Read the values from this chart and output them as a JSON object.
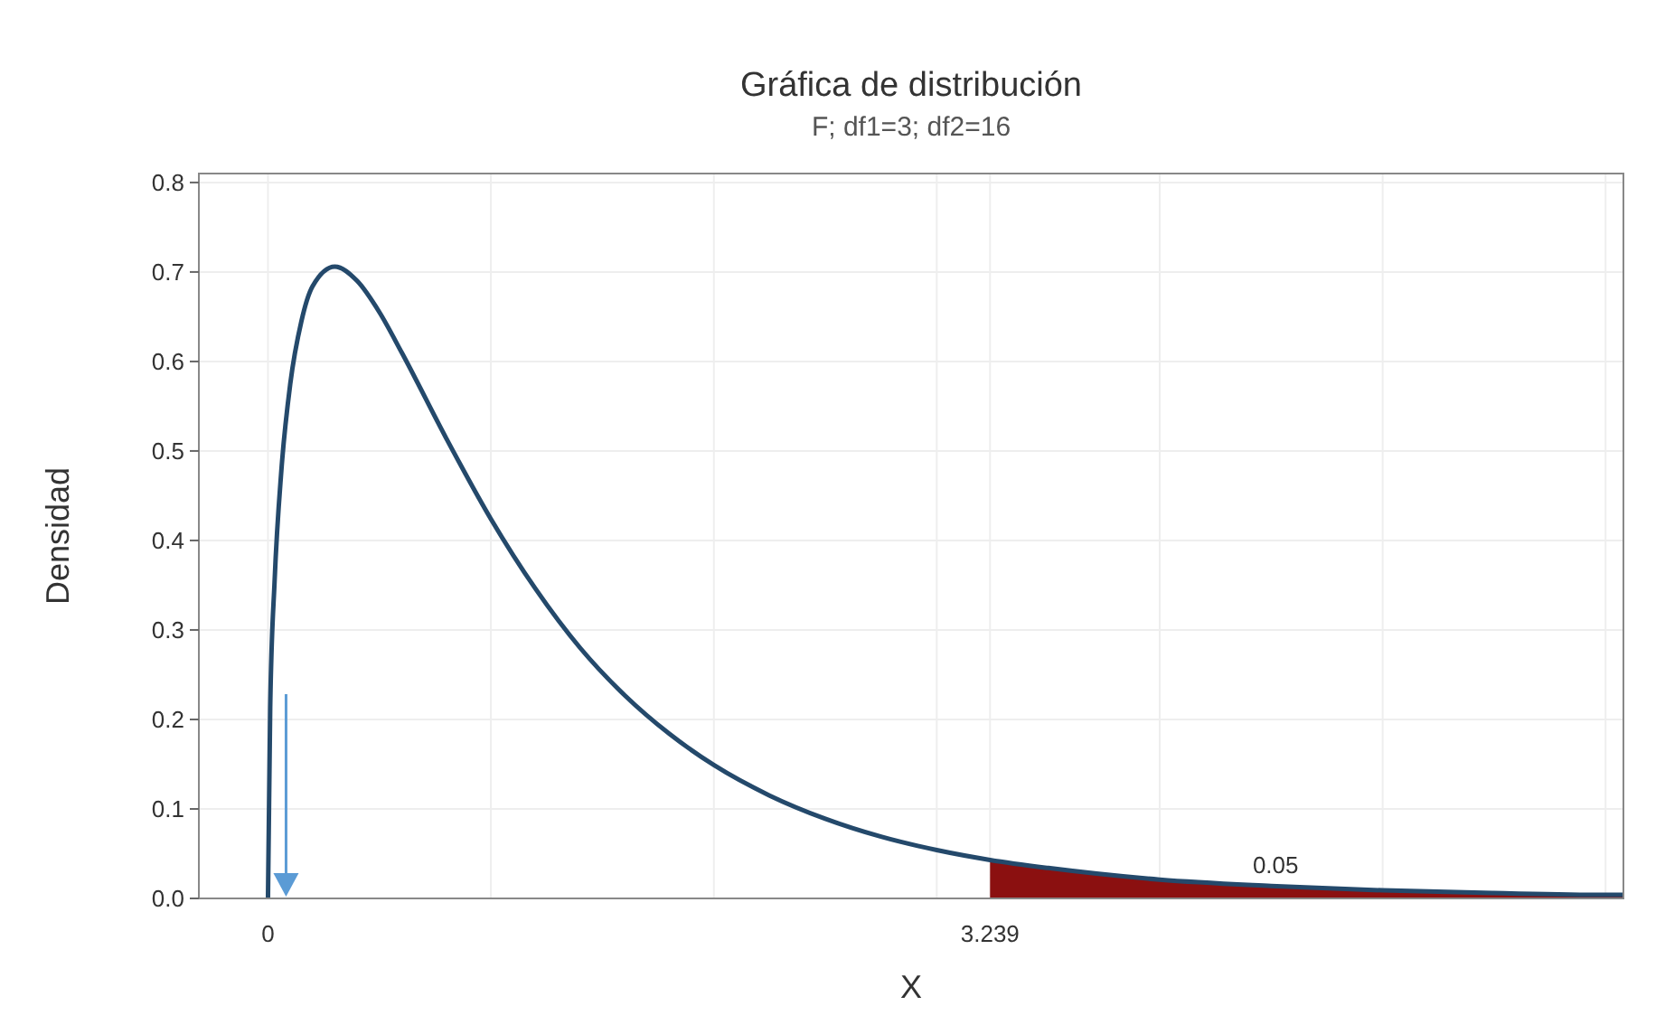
{
  "chart_data": {
    "type": "line",
    "title": "Gráfica de distribución",
    "subtitle": "F; df1=3; df2=16",
    "xlabel": "X",
    "ylabel": "Densidad",
    "xlim": [
      -0.31,
      6.08
    ],
    "ylim": [
      0,
      0.81
    ],
    "xticks": [
      0,
      {
        "value": 1,
        "label": null
      },
      {
        "value": 2,
        "label": null
      },
      {
        "value": 3,
        "label": null
      },
      3.239,
      {
        "value": 4,
        "label": null
      },
      {
        "value": 5,
        "label": null
      },
      {
        "value": 6,
        "label": null
      }
    ],
    "yticks": [
      {
        "value": 0,
        "label": "0.0"
      },
      0.1,
      0.2,
      0.3,
      0.4,
      0.5,
      0.6,
      0.7,
      0.8
    ],
    "grid": true,
    "series": [
      {
        "type": "area",
        "color": "#8b1010",
        "x": [
          3.239,
          3.5,
          4,
          4.5,
          5,
          5.5,
          6,
          6.08
        ],
        "values": [
          0.043,
          0.034,
          0.021,
          0.014,
          0.009,
          0.006,
          0.004,
          0.004
        ]
      },
      {
        "color": "#24496b",
        "x": [
          0,
          0.01,
          0.03,
          0.06,
          0.1,
          0.15,
          0.2,
          0.3,
          0.4,
          0.5,
          0.6,
          0.8,
          1,
          1.2,
          1.4,
          1.6,
          1.8,
          2,
          2.25,
          2.5,
          2.75,
          3,
          3.239,
          3.5,
          4,
          4.5,
          5,
          5.5,
          6,
          6.08
        ],
        "values": [
          0,
          0.213,
          0.356,
          0.478,
          0.575,
          0.645,
          0.684,
          0.706,
          0.69,
          0.655,
          0.61,
          0.514,
          0.424,
          0.346,
          0.28,
          0.227,
          0.184,
          0.149,
          0.115,
          0.089,
          0.069,
          0.054,
          0.043,
          0.034,
          0.021,
          0.014,
          0.009,
          0.006,
          0.004,
          0.004
        ]
      }
    ],
    "annotations": [
      {
        "text": "0.05",
        "x": 4.52,
        "y": 0.02
      }
    ]
  }
}
